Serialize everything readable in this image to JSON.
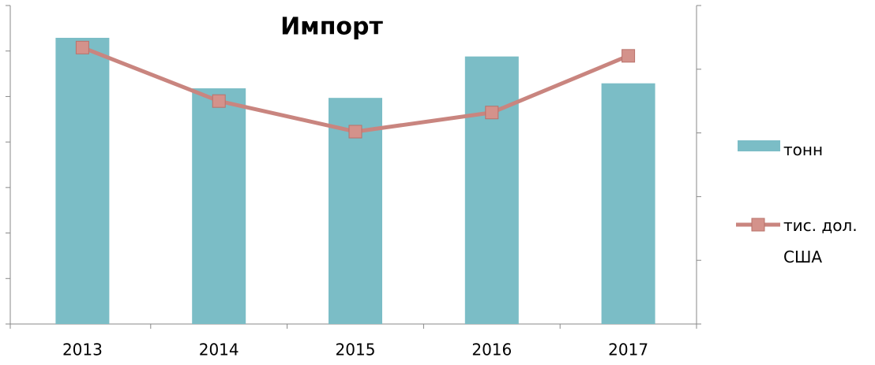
{
  "chart_data": {
    "type": "bar-line",
    "title": "Импорт",
    "categories": [
      "2013",
      "2014",
      "2015",
      "2016",
      "2017"
    ],
    "series": [
      {
        "name": "тонн",
        "type": "bar",
        "color": "#7bbdc6",
        "values": [
          6.29,
          5.18,
          4.97,
          5.88,
          5.29
        ]
      },
      {
        "name": "тис. дол. США",
        "type": "line",
        "axis": "y2",
        "color": "#c9857f",
        "values": [
          4.34,
          3.5,
          3.02,
          3.32,
          4.21
        ]
      }
    ],
    "ylim": [
      0,
      7
    ],
    "yticks": [
      0,
      1,
      2,
      3,
      4,
      5,
      6,
      7
    ],
    "y2lim": [
      0,
      5
    ],
    "y2ticks": [
      0,
      1,
      2,
      3,
      4,
      5
    ],
    "legend": "right"
  }
}
